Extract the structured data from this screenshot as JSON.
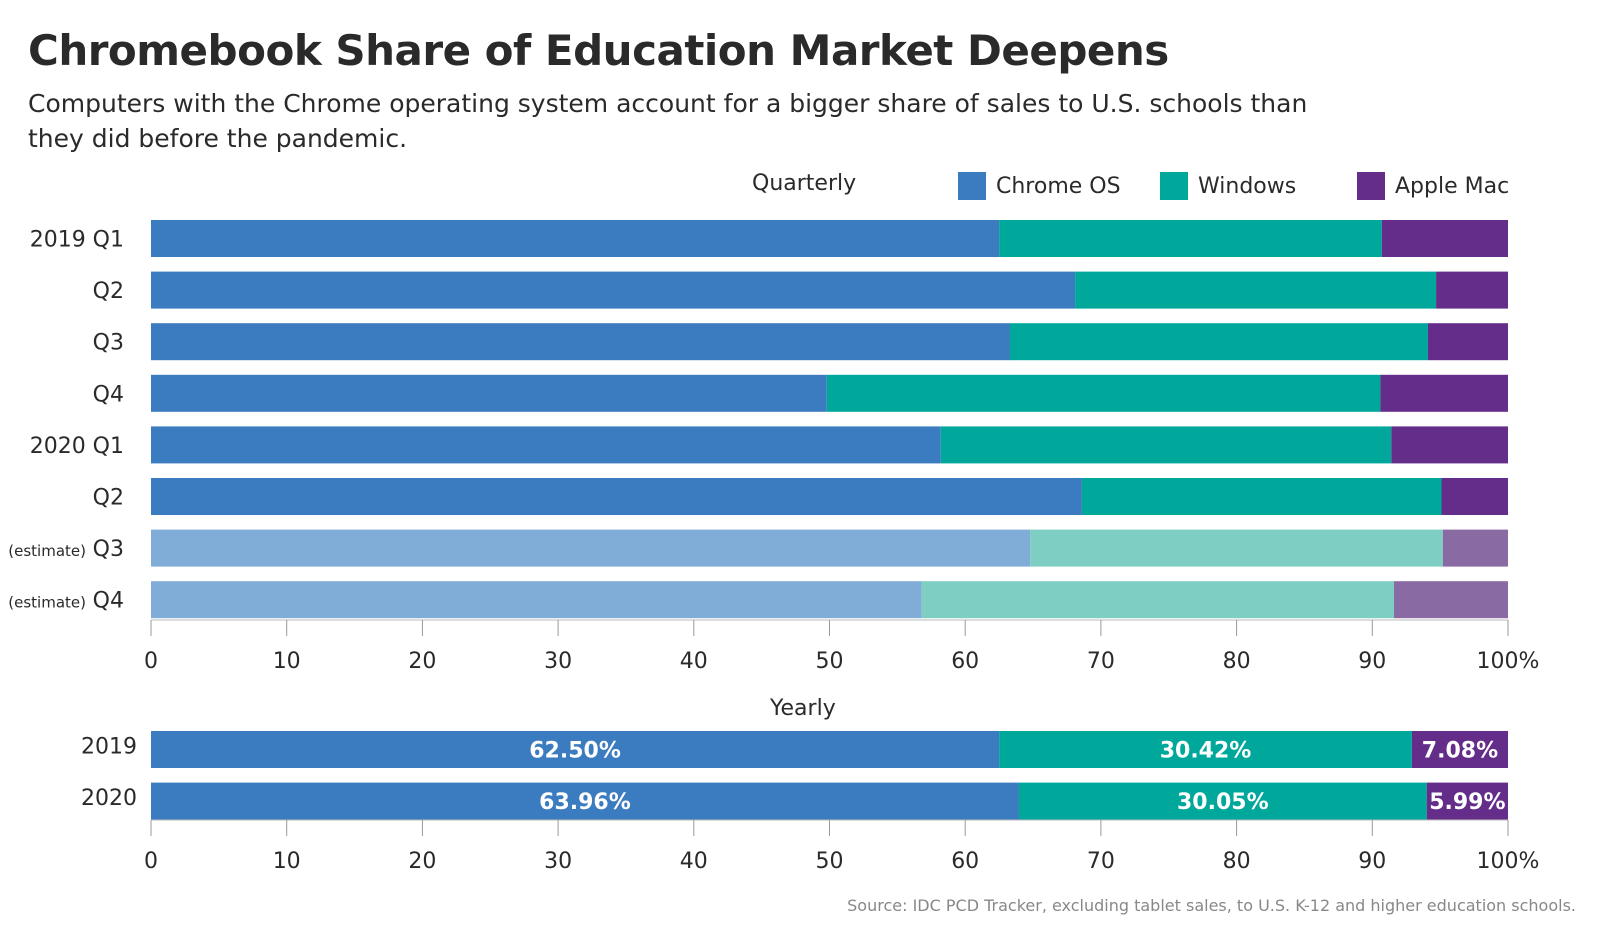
{
  "title": "Chromebook Share of Education Market Deepens",
  "subtitle": "Computers with the Chrome operating system account for a bigger share of sales to U.S. schools than they did before the pandemic.",
  "source": "Source: IDC PCD Tracker, excluding tablet sales, to U.S. K-12 and higher education schools.",
  "legend": [
    {
      "name": "Chrome OS",
      "color": "#3b7bbf"
    },
    {
      "name": "Windows",
      "color": "#00a89c"
    },
    {
      "name": "Apple Mac",
      "color": "#652d8a"
    }
  ],
  "estimate_colors": [
    "#80acd8",
    "#7ecec4",
    "#8a6aa2"
  ],
  "chart_data": [
    {
      "type": "bar",
      "stacked": true,
      "orientation": "horizontal",
      "title": "Quarterly",
      "categories": [
        "2019 Q1",
        "Q2",
        "Q3",
        "Q4",
        "2020 Q1",
        "Q2",
        "(estimate) Q3",
        "(estimate) Q4"
      ],
      "category_labels": [
        {
          "prefix": "",
          "label": "2019 Q1"
        },
        {
          "prefix": "",
          "label": "Q2"
        },
        {
          "prefix": "",
          "label": "Q3"
        },
        {
          "prefix": "",
          "label": "Q4"
        },
        {
          "prefix": "",
          "label": "2020 Q1"
        },
        {
          "prefix": "",
          "label": "Q2"
        },
        {
          "prefix": "(estimate)",
          "label": "Q3"
        },
        {
          "prefix": "(estimate)",
          "label": "Q4"
        }
      ],
      "estimate": [
        false,
        false,
        false,
        false,
        false,
        false,
        true,
        true
      ],
      "series": [
        {
          "name": "Chrome OS",
          "values": [
            62.5,
            68.1,
            63.3,
            49.8,
            58.2,
            68.6,
            64.8,
            56.8
          ]
        },
        {
          "name": "Windows",
          "values": [
            28.2,
            26.6,
            30.8,
            40.8,
            33.2,
            26.5,
            30.4,
            34.8
          ]
        },
        {
          "name": "Apple Mac",
          "values": [
            9.3,
            5.3,
            5.9,
            9.4,
            8.6,
            4.9,
            4.8,
            8.4
          ]
        }
      ],
      "xlim": [
        0,
        100
      ],
      "xticks": [
        "0",
        "10",
        "20",
        "30",
        "40",
        "50",
        "60",
        "70",
        "80",
        "90",
        "100%"
      ]
    },
    {
      "type": "bar",
      "stacked": true,
      "orientation": "horizontal",
      "title": "Yearly",
      "categories": [
        "2019",
        "2020"
      ],
      "series": [
        {
          "name": "Chrome OS",
          "values": [
            62.5,
            63.96
          ],
          "labels": [
            "62.50%",
            "63.96%"
          ]
        },
        {
          "name": "Windows",
          "values": [
            30.42,
            30.05
          ],
          "labels": [
            "30.42%",
            "30.05%"
          ]
        },
        {
          "name": "Apple Mac",
          "values": [
            7.08,
            5.99
          ],
          "labels": [
            "7.08%",
            "5.99%"
          ]
        }
      ],
      "xlim": [
        0,
        100
      ],
      "xticks": [
        "0",
        "10",
        "20",
        "30",
        "40",
        "50",
        "60",
        "70",
        "80",
        "90",
        "100%"
      ]
    }
  ]
}
